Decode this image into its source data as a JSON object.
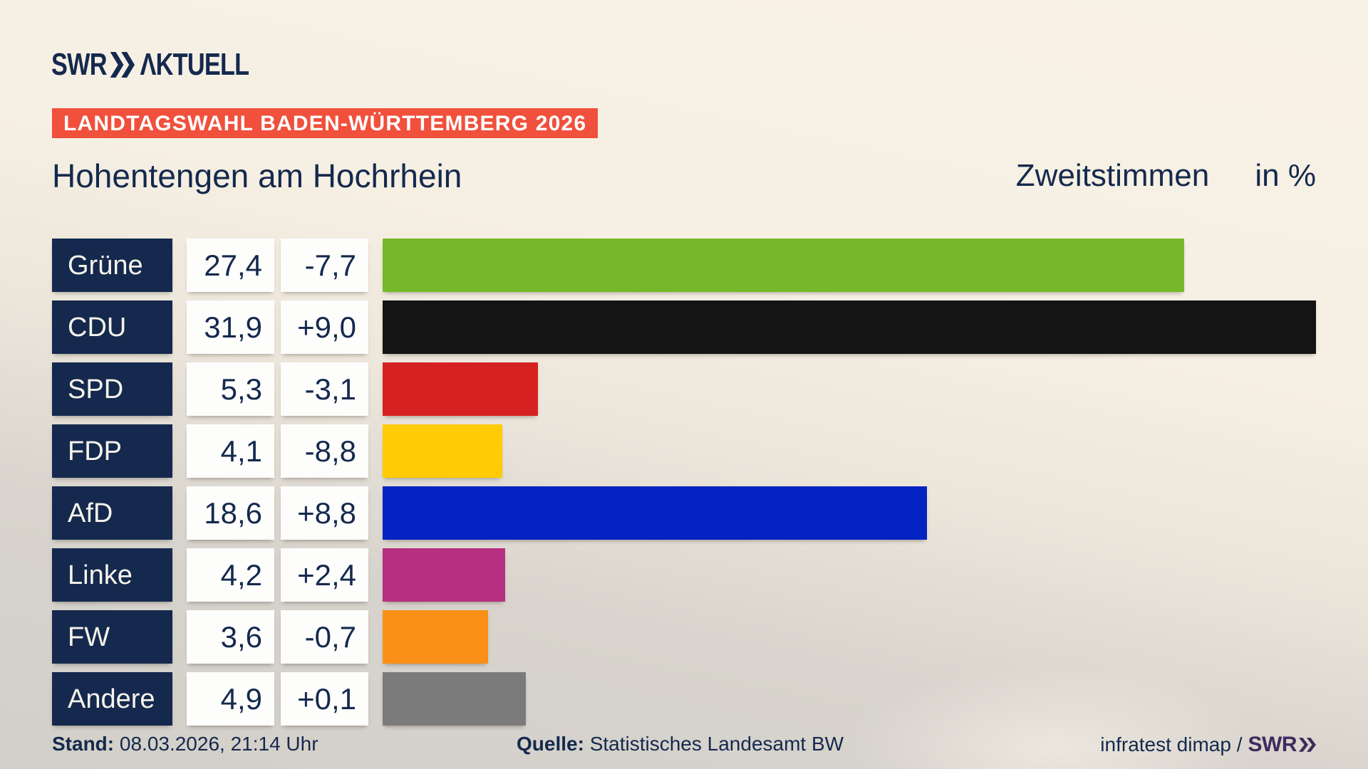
{
  "theme": {
    "navy": "#14294d",
    "background_top": "#f8f1e6",
    "background_bottom": "#d2cfc9",
    "box_white": "#fdfdfc",
    "swr_purple": "#3e2a5d"
  },
  "logo": {
    "swr": "SWR",
    "suffix": "ΛKTUELL"
  },
  "banner": {
    "label": "LANDTAGSWAHL BADEN-WÜRTTEMBERG 2026",
    "bg": "#f0503c",
    "text_color": "#ffffff"
  },
  "header": {
    "title": "Hohentengen am Hochrhein",
    "measure": "Zweitstimmen",
    "unit": "in %"
  },
  "chart_data": {
    "type": "bar",
    "orientation": "horizontal",
    "title": "Zweitstimmen in %",
    "categories": [
      "Grüne",
      "CDU",
      "SPD",
      "FDP",
      "AfD",
      "Linke",
      "FW",
      "Andere"
    ],
    "values": [
      27.4,
      31.9,
      5.3,
      4.1,
      18.6,
      4.2,
      3.6,
      4.9
    ],
    "deltas": [
      -7.7,
      9.0,
      -3.1,
      -8.8,
      8.8,
      2.4,
      -0.7,
      0.1
    ],
    "value_labels": [
      "27,4",
      "31,9",
      "5,3",
      "4,1",
      "18,6",
      "4,2",
      "3,6",
      "4,9"
    ],
    "delta_labels": [
      "-7,7",
      "+9,0",
      "-3,1",
      "-8,8",
      "+8,8",
      "+2,4",
      "-0,7",
      "+0,1"
    ],
    "bar_colors": [
      "#76b82a",
      "#141414",
      "#d52221",
      "#ffcb05",
      "#0522c2",
      "#b62f80",
      "#fa9017",
      "#7b7b7b"
    ],
    "xlim": [
      0,
      31.9
    ],
    "xmax": 31.9,
    "grid": false,
    "legend": false
  },
  "footer": {
    "stand_label": "Stand:",
    "stand_value": "08.03.2026, 21:14 Uhr",
    "quelle_label": "Quelle:",
    "quelle_value": "Statistisches Landesamt BW",
    "credit": "infratest dimap /",
    "credit_brand": "SWR"
  }
}
